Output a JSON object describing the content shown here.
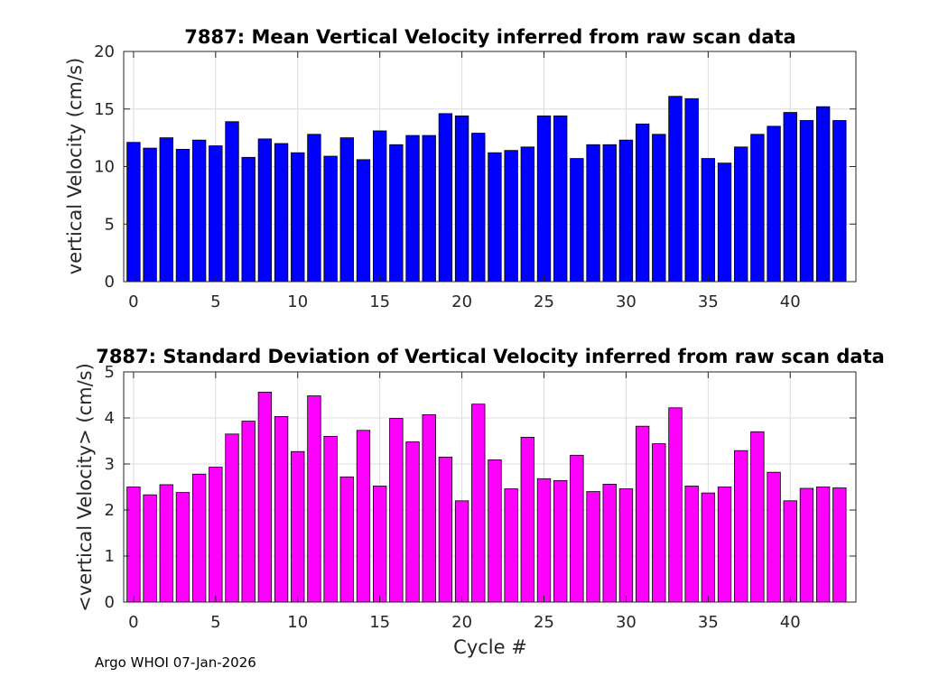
{
  "chart_data": [
    {
      "type": "bar",
      "title": "7887: Mean Vertical Velocity inferred from raw scan data",
      "xlabel": "",
      "ylabel": "vertical Velocity (cm/s)",
      "xlim": [
        -0.6,
        44
      ],
      "ylim": [
        0,
        20
      ],
      "yticks": [
        0,
        5,
        10,
        15,
        20
      ],
      "xticks": [
        0,
        5,
        10,
        15,
        20,
        25,
        30,
        35,
        40
      ],
      "grid": true,
      "bar_color": "#0000ff",
      "x": [
        0,
        1,
        2,
        3,
        4,
        5,
        6,
        7,
        8,
        9,
        10,
        11,
        12,
        13,
        14,
        15,
        16,
        17,
        18,
        19,
        20,
        21,
        22,
        23,
        24,
        25,
        26,
        27,
        28,
        29,
        30,
        31,
        32,
        33,
        34,
        35,
        36,
        37,
        38,
        39,
        40,
        41,
        42,
        43
      ],
      "values": [
        12.1,
        11.6,
        12.5,
        11.5,
        12.3,
        11.8,
        13.9,
        10.8,
        12.4,
        12.0,
        11.2,
        12.8,
        10.9,
        12.5,
        10.6,
        13.1,
        11.9,
        12.7,
        12.7,
        14.6,
        14.4,
        12.9,
        11.2,
        11.4,
        11.7,
        14.4,
        14.4,
        10.7,
        11.9,
        11.9,
        12.3,
        13.7,
        12.8,
        16.1,
        15.9,
        10.7,
        10.3,
        11.7,
        12.8,
        13.5,
        14.7,
        14.0,
        15.2,
        14.0
      ]
    },
    {
      "type": "bar",
      "title": "7887: Standard Deviation of Vertical Velocity inferred from raw scan data",
      "xlabel": "Cycle #",
      "ylabel": "<vertical Velocity> (cm/s)",
      "xlim": [
        -0.6,
        44
      ],
      "ylim": [
        0,
        5
      ],
      "yticks": [
        0,
        1,
        2,
        3,
        4,
        5
      ],
      "xticks": [
        0,
        5,
        10,
        15,
        20,
        25,
        30,
        35,
        40
      ],
      "grid": true,
      "bar_color": "#ff00ff",
      "x": [
        0,
        1,
        2,
        3,
        4,
        5,
        6,
        7,
        8,
        9,
        10,
        11,
        12,
        13,
        14,
        15,
        16,
        17,
        18,
        19,
        20,
        21,
        22,
        23,
        24,
        25,
        26,
        27,
        28,
        29,
        30,
        31,
        32,
        33,
        34,
        35,
        36,
        37,
        38,
        39,
        40,
        41,
        42,
        43
      ],
      "values": [
        2.5,
        2.33,
        2.55,
        2.38,
        2.78,
        2.93,
        3.65,
        3.93,
        4.56,
        4.03,
        3.27,
        4.48,
        3.6,
        2.72,
        3.73,
        2.52,
        3.99,
        3.48,
        4.07,
        3.15,
        2.2,
        4.3,
        3.09,
        2.46,
        3.58,
        2.68,
        2.64,
        3.19,
        2.4,
        2.56,
        2.46,
        3.82,
        3.44,
        4.22,
        2.52,
        2.37,
        2.5,
        3.29,
        3.7,
        2.82,
        2.2,
        2.47,
        2.5,
        2.48
      ]
    }
  ],
  "footer": "Argo WHOI 07-Jan-2026"
}
